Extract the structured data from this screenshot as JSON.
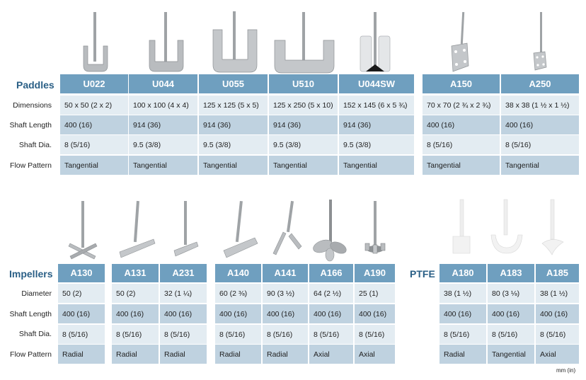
{
  "paddles": {
    "title": "Paddles",
    "row_labels": [
      "Dimensions",
      "Shaft Length",
      "Shaft Dia.",
      "Flow Pattern"
    ],
    "groups": [
      {
        "columns": [
          {
            "model": "U022",
            "icon": "paddle-u-small-icon",
            "values": [
              "50 x 50 (2 x 2)",
              "400 (16)",
              "8  (5/16)",
              "Tangential"
            ]
          },
          {
            "model": "U044",
            "icon": "paddle-u-medium-icon",
            "values": [
              "100 x 100 (4 x 4)",
              "914 (36)",
              "9.5  (3/8)",
              "Tangential"
            ]
          },
          {
            "model": "U055",
            "icon": "paddle-u-large-icon",
            "values": [
              "125 x 125 (5 x 5)",
              "914 (36)",
              "9.5  (3/8)",
              "Tangential"
            ]
          },
          {
            "model": "U510",
            "icon": "paddle-u-wide-icon",
            "values": [
              "125 x 250 (5 x 10)",
              "914 (36)",
              "9.5  (3/8)",
              "Tangential"
            ]
          },
          {
            "model": "U044SW",
            "icon": "paddle-sweep-icon",
            "values": [
              "152 x 145 (6 x 5 ¾)",
              "914 (36)",
              "9.5  (3/8)",
              "Tangential"
            ]
          }
        ]
      },
      {
        "columns": [
          {
            "model": "A150",
            "icon": "paddle-plate-large-icon",
            "values": [
              "70 x 70 (2 ¾ x 2 ¾)",
              "400 (16)",
              "8  (5/16)",
              "Tangential"
            ]
          },
          {
            "model": "A250",
            "icon": "paddle-plate-small-icon",
            "values": [
              "38 x 38 (1 ½ x 1 ½)",
              "400 (16)",
              "8  (5/16)",
              "Tangential"
            ]
          }
        ]
      }
    ]
  },
  "impellers": {
    "title": "Impellers",
    "row_labels": [
      "Diameter",
      "Shaft Length",
      "Shaft Dia.",
      "Flow Pattern"
    ],
    "groups": [
      {
        "columns": [
          {
            "model": "A130",
            "icon": "impeller-cross-blade-icon",
            "values": [
              "50 (2)",
              "400 (16)",
              "8  (5/16)",
              "Radial"
            ]
          }
        ]
      },
      {
        "columns": [
          {
            "model": "A131",
            "icon": "impeller-flat-blade-icon",
            "values": [
              "50 (2)",
              "400 (16)",
              "8  (5/16)",
              "Radial"
            ]
          },
          {
            "model": "A231",
            "icon": "impeller-flat-blade-small-icon",
            "values": [
              "32 (1 ¼)",
              "400 (16)",
              "8  (5/16)",
              "Radial"
            ]
          }
        ]
      },
      {
        "columns": [
          {
            "model": "A140",
            "icon": "impeller-pitched-blade-icon",
            "values": [
              "60 (2 ⅜)",
              "400 (16)",
              "8  (5/16)",
              "Radial"
            ]
          },
          {
            "model": "A141",
            "icon": "impeller-folding-blade-icon",
            "values": [
              "90 (3 ½)",
              "400 (16)",
              "8  (5/16)",
              "Radial"
            ]
          },
          {
            "model": "A166",
            "icon": "impeller-propeller-icon",
            "values": [
              "64 (2 ½)",
              "400 (16)",
              "8  (5/16)",
              "Axial"
            ]
          },
          {
            "model": "A190",
            "icon": "impeller-turbine-icon",
            "values": [
              "25 (1)",
              "400 (16)",
              "8  (5/16)",
              "Axial"
            ]
          }
        ]
      }
    ]
  },
  "ptfe": {
    "title": "PTFE",
    "groups": [
      {
        "columns": [
          {
            "model": "A180",
            "icon": "ptfe-paddle-icon",
            "values": [
              "38  (1 ½)",
              "400 (16)",
              "8 (5/16)",
              "Radial"
            ]
          },
          {
            "model": "A183",
            "icon": "ptfe-anchor-icon",
            "values": [
              "80  (3 ⅛)",
              "400 (16)",
              "8 (5/16)",
              "Tangential"
            ]
          },
          {
            "model": "A185",
            "icon": "ptfe-propeller-icon",
            "values": [
              "38  (1 ½)",
              "400 (16)",
              "8 (5/16)",
              "Axial"
            ]
          }
        ]
      }
    ]
  },
  "units_note": "mm (in)",
  "colors": {
    "header": "#6f9fbf",
    "row_light": "#e3ecf2",
    "row_mid": "#bfd2e0",
    "title": "#2a5f86",
    "metal": "#b9bcbf",
    "ptfe": "#eeeeee"
  }
}
